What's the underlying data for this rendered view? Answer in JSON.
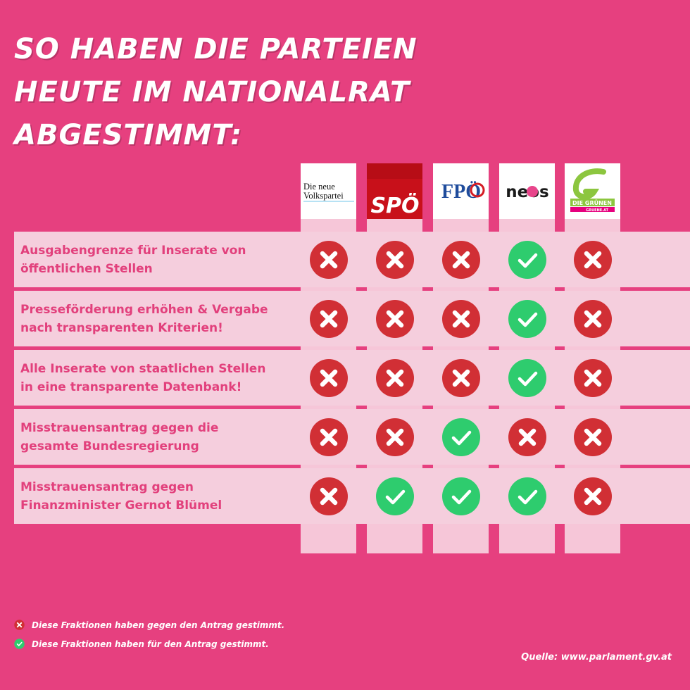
{
  "title": {
    "line1": "SO HABEN DIE PARTEIEN",
    "line2": "HEUTE IM NATIONALRAT",
    "line3": "ABGESTIMMT:"
  },
  "colors": {
    "background": "#e6407f",
    "against": "#d12f35",
    "for": "#2ecc6e",
    "label_text": "#e2407c"
  },
  "parties": [
    {
      "id": "oevp",
      "logo_text": [
        "Die neue",
        "Volkspartei"
      ]
    },
    {
      "id": "spoe",
      "logo_text": [
        "SPÖ"
      ]
    },
    {
      "id": "fpoe",
      "logo_text": [
        "FPÖ"
      ]
    },
    {
      "id": "neos",
      "logo_text": [
        "neos"
      ]
    },
    {
      "id": "gruene",
      "logo_text": [
        "DIE GRÜNEN",
        "GRUENE.AT"
      ]
    }
  ],
  "rows": [
    {
      "label": [
        "Ausgabengrenze für Inserate von",
        "öffentlichen Stellen"
      ],
      "votes": [
        "against",
        "against",
        "against",
        "for",
        "against"
      ]
    },
    {
      "label": [
        "Presseförderung erhöhen & Vergabe",
        "nach transparenten Kriterien!"
      ],
      "votes": [
        "against",
        "against",
        "against",
        "for",
        "against"
      ]
    },
    {
      "label": [
        "Alle Inserate von staatlichen Stellen",
        "in eine transparente Datenbank!"
      ],
      "votes": [
        "against",
        "against",
        "against",
        "for",
        "against"
      ]
    },
    {
      "label": [
        "Misstrauensantrag gegen die",
        "gesamte Bundesregierung"
      ],
      "votes": [
        "against",
        "against",
        "for",
        "against",
        "against"
      ]
    },
    {
      "label": [
        "Misstrauensantrag gegen",
        "Finanzminister Gernot Blümel"
      ],
      "votes": [
        "against",
        "for",
        "for",
        "for",
        "against"
      ]
    }
  ],
  "legend": {
    "against": "Diese Fraktionen haben gegen den Antrag gestimmt.",
    "for": "Diese Fraktionen haben für den Antrag gestimmt."
  },
  "source": "Quelle: www.parlament.gv.at"
}
